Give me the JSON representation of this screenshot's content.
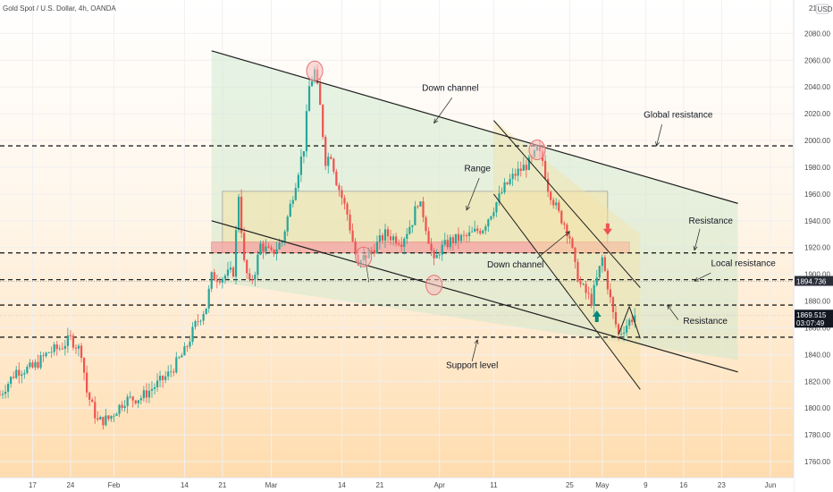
{
  "header": {
    "symbol": "Gold Spot / U.S. Dollar, 4h, OANDA",
    "currency": "USD",
    "corner_value": "21"
  },
  "chart_data": {
    "type": "candlestick",
    "y_range": [
      1748,
      2105
    ],
    "y_ticks": [
      1760,
      1780,
      1800,
      1820,
      1840,
      1860,
      1880,
      1900,
      1920,
      1940,
      1960,
      1980,
      2000,
      2020,
      2040,
      2060,
      2080
    ],
    "x_range": [
      "2020-01-11",
      "2020-06-01"
    ],
    "x_ticks": [
      {
        "date": "2020-01-17",
        "label": "17"
      },
      {
        "date": "2020-01-24",
        "label": "24"
      },
      {
        "date": "2020-02-01",
        "label": "Feb"
      },
      {
        "date": "2020-02-14",
        "label": "14"
      },
      {
        "date": "2020-02-21",
        "label": "21"
      },
      {
        "date": "2020-03-01",
        "label": "Mar"
      },
      {
        "date": "2020-03-14",
        "label": "14"
      },
      {
        "date": "2020-03-21",
        "label": "21"
      },
      {
        "date": "2020-04-01",
        "label": "Apr"
      },
      {
        "date": "2020-04-11",
        "label": "11"
      },
      {
        "date": "2020-04-25",
        "label": "25"
      },
      {
        "date": "2020-05-01",
        "label": "May"
      },
      {
        "date": "2020-05-09",
        "label": "9"
      },
      {
        "date": "2020-05-16",
        "label": "16"
      },
      {
        "date": "2020-05-23",
        "label": "23"
      },
      {
        "date": "2020-06-01",
        "label": "Jun"
      }
    ],
    "price_path": [
      [
        "2020-01-11",
        1810
      ],
      [
        "2020-01-14",
        1828
      ],
      [
        "2020-01-17",
        1830
      ],
      [
        "2020-01-20",
        1842
      ],
      [
        "2020-01-22",
        1845
      ],
      [
        "2020-01-24",
        1852
      ],
      [
        "2020-01-26",
        1842
      ],
      [
        "2020-01-27",
        1812
      ],
      [
        "2020-01-29",
        1790
      ],
      [
        "2020-01-31",
        1792
      ],
      [
        "2020-02-03",
        1806
      ],
      [
        "2020-02-06",
        1808
      ],
      [
        "2020-02-09",
        1818
      ],
      [
        "2020-02-11",
        1825
      ],
      [
        "2020-02-14",
        1842
      ],
      [
        "2020-02-16",
        1862
      ],
      [
        "2020-02-18",
        1876
      ],
      [
        "2020-02-19",
        1898
      ],
      [
        "2020-02-21",
        1898
      ],
      [
        "2020-02-23",
        1902
      ],
      [
        "2020-02-24",
        1960
      ],
      [
        "2020-02-25",
        1908
      ],
      [
        "2020-02-26",
        1892
      ],
      [
        "2020-02-27",
        1903
      ],
      [
        "2020-02-28",
        1922
      ],
      [
        "2020-03-01",
        1915
      ],
      [
        "2020-03-03",
        1925
      ],
      [
        "2020-03-05",
        1960
      ],
      [
        "2020-03-06",
        1978
      ],
      [
        "2020-03-07",
        1995
      ],
      [
        "2020-03-08",
        2040
      ],
      [
        "2020-03-09",
        2052
      ],
      [
        "2020-03-10",
        2025
      ],
      [
        "2020-03-11",
        1985
      ],
      [
        "2020-03-12",
        1990
      ],
      [
        "2020-03-13",
        1970
      ],
      [
        "2020-03-15",
        1945
      ],
      [
        "2020-03-16",
        1925
      ],
      [
        "2020-03-17",
        1905
      ],
      [
        "2020-03-18",
        1912
      ],
      [
        "2020-03-20",
        1920
      ],
      [
        "2020-03-22",
        1930
      ],
      [
        "2020-03-25",
        1925
      ],
      [
        "2020-03-27",
        1940
      ],
      [
        "2020-03-28",
        1955
      ],
      [
        "2020-03-29",
        1945
      ],
      [
        "2020-03-31",
        1908
      ],
      [
        "2020-04-01",
        1918
      ],
      [
        "2020-04-03",
        1925
      ],
      [
        "2020-04-06",
        1928
      ],
      [
        "2020-04-09",
        1935
      ],
      [
        "2020-04-11",
        1950
      ],
      [
        "2020-04-13",
        1965
      ],
      [
        "2020-04-15",
        1975
      ],
      [
        "2020-04-18",
        1985
      ],
      [
        "2020-04-19",
        1993
      ],
      [
        "2020-04-20",
        1985
      ],
      [
        "2020-04-21",
        1965
      ],
      [
        "2020-04-23",
        1945
      ],
      [
        "2020-04-24",
        1938
      ],
      [
        "2020-04-25",
        1928
      ],
      [
        "2020-04-26",
        1905
      ],
      [
        "2020-04-27",
        1892
      ],
      [
        "2020-04-29",
        1880
      ],
      [
        "2020-05-01",
        1912
      ],
      [
        "2020-05-02",
        1892
      ],
      [
        "2020-05-03",
        1870
      ],
      [
        "2020-05-04",
        1855
      ],
      [
        "2020-05-06",
        1865
      ],
      [
        "2020-05-07",
        1869.5
      ]
    ],
    "horizontal_levels": [
      1996,
      1916,
      1896,
      1877,
      1853
    ],
    "price_tags": [
      {
        "price": 1894.736,
        "label": "1894.736"
      },
      {
        "price": 1869.515,
        "label": "1869.515",
        "countdown": "03:07:49"
      }
    ],
    "annotations": [
      {
        "text": "Down channel",
        "date": "2020-04-03",
        "price": 2037
      },
      {
        "text": "Global resistance",
        "date": "2020-05-15",
        "price": 2017
      },
      {
        "text": "Range",
        "date": "2020-04-08",
        "price": 1977
      },
      {
        "text": "Resistance",
        "date": "2020-05-21",
        "price": 1938
      },
      {
        "text": "Down channel",
        "date": "2020-04-15",
        "price": 1905
      },
      {
        "text": "Local resistance",
        "date": "2020-05-27",
        "price": 1906
      },
      {
        "text": "Resistance",
        "date": "2020-05-20",
        "price": 1863
      },
      {
        "text": "Support level",
        "date": "2020-04-07",
        "price": 1830
      }
    ]
  }
}
